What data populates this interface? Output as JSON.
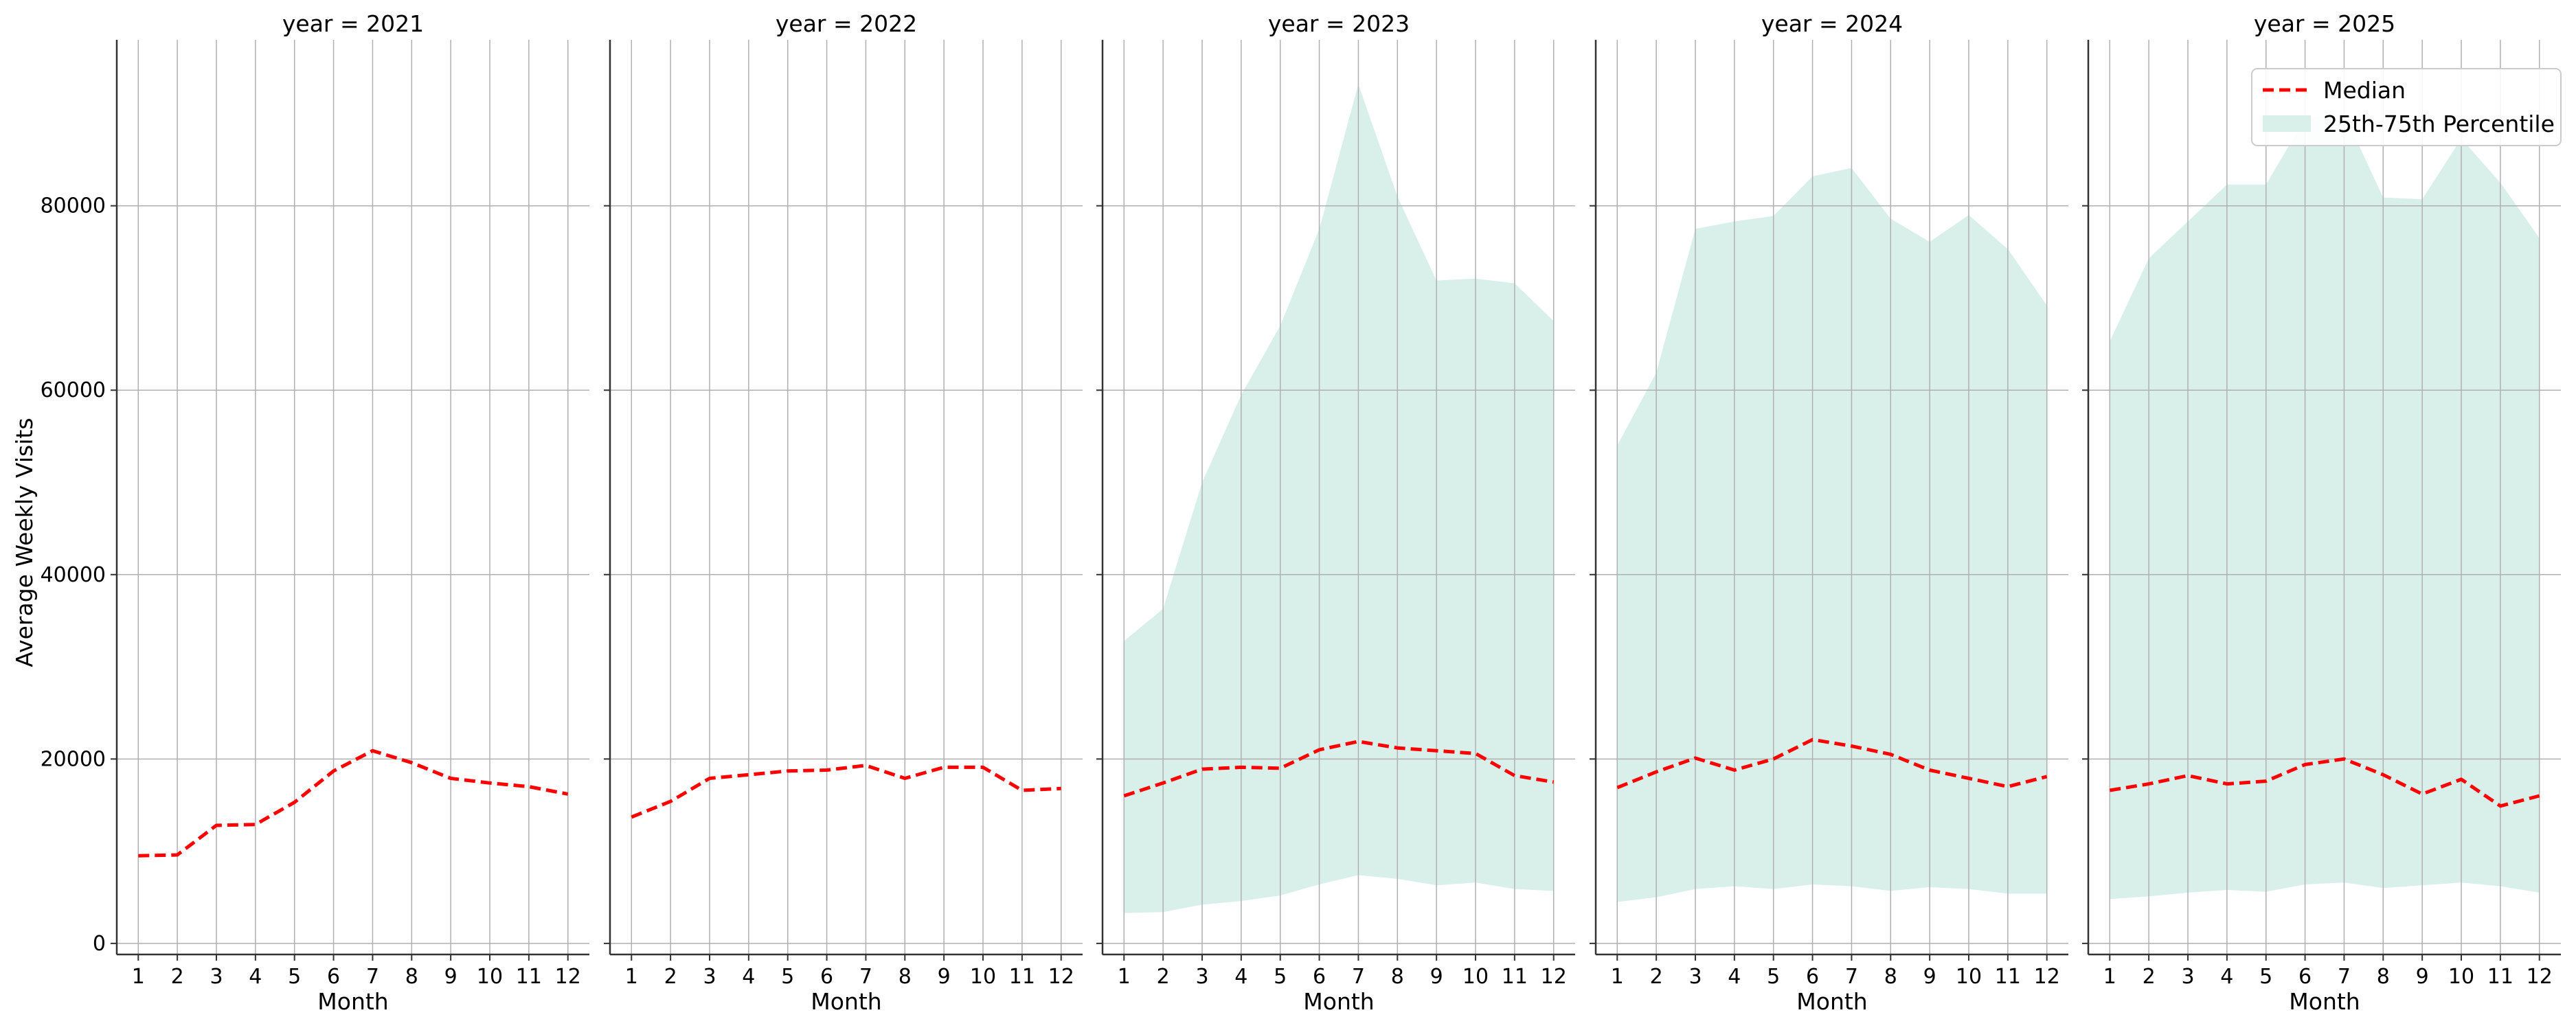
{
  "chart_data": {
    "type": "line",
    "ylabel": "Average Weekly Visits",
    "xlabel": "Month",
    "ylim": [
      -1200,
      98000
    ],
    "xlim": [
      0.45,
      12.55
    ],
    "yticks": [
      0,
      20000,
      40000,
      60000,
      80000
    ],
    "ytick_labels": [
      "0",
      "20000",
      "40000",
      "60000",
      "80000"
    ],
    "x": [
      1,
      2,
      3,
      4,
      5,
      6,
      7,
      8,
      9,
      10,
      11,
      12
    ],
    "xtick_labels": [
      "1",
      "2",
      "3",
      "4",
      "5",
      "6",
      "7",
      "8",
      "9",
      "10",
      "11",
      "12"
    ],
    "grid": true,
    "legend": {
      "placement": "top-right",
      "median_label": "Median",
      "band_label": "25th-75th Percentile"
    },
    "colors": {
      "median": "#ff0000",
      "band": "#d9f0ea",
      "grid": "#b0b0b0",
      "axis": "#333333"
    },
    "panels": [
      {
        "title": "year = 2021",
        "median": [
          9500,
          9600,
          12800,
          12900,
          15300,
          18700,
          20900,
          19600,
          17900,
          17400,
          17000,
          16200
        ],
        "p25": null,
        "p75": null
      },
      {
        "title": "year = 2022",
        "median": [
          13700,
          15400,
          17900,
          18300,
          18700,
          18800,
          19300,
          17900,
          19100,
          19100,
          16600,
          16800
        ],
        "p25": null,
        "p75": null
      },
      {
        "title": "year = 2023",
        "median": [
          16000,
          17400,
          18900,
          19100,
          19000,
          21000,
          21900,
          21200,
          20900,
          20600,
          18200,
          17500
        ],
        "p25": [
          3300,
          3400,
          4200,
          4600,
          5200,
          6400,
          7400,
          7000,
          6300,
          6600,
          5900,
          5700
        ],
        "p75": [
          32800,
          36300,
          50000,
          59500,
          67000,
          77500,
          93200,
          81000,
          71900,
          72100,
          71600,
          67500
        ]
      },
      {
        "title": "year = 2024",
        "median": [
          16900,
          18600,
          20100,
          18800,
          20000,
          22100,
          21400,
          20500,
          18800,
          17900,
          17000,
          18100
        ],
        "p25": [
          4500,
          5000,
          5900,
          6200,
          5900,
          6400,
          6200,
          5700,
          6100,
          5900,
          5400,
          5400
        ],
        "p75": [
          54000,
          61900,
          77500,
          78300,
          78900,
          83200,
          84100,
          78600,
          76100,
          79000,
          75300,
          69200
        ]
      },
      {
        "title": "year = 2025",
        "median": [
          16600,
          17300,
          18200,
          17300,
          17600,
          19400,
          20000,
          18300,
          16200,
          17800,
          14900,
          16000
        ],
        "p25": [
          4800,
          5100,
          5500,
          5800,
          5600,
          6400,
          6600,
          6000,
          6300,
          6600,
          6200,
          5500
        ],
        "p75": [
          65300,
          74300,
          78300,
          82300,
          82300,
          89500,
          90000,
          80900,
          80700,
          87300,
          82500,
          76500
        ]
      }
    ]
  }
}
